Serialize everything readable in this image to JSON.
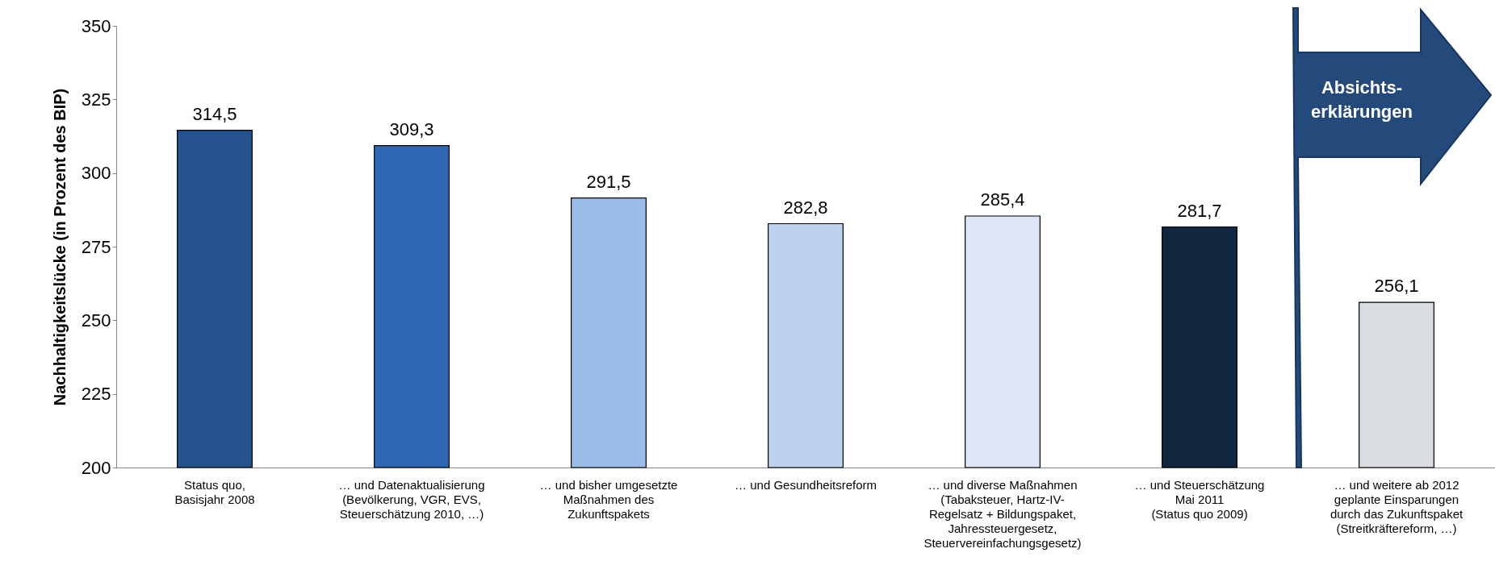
{
  "chart_data": {
    "type": "bar",
    "ylabel": "Nachhaltigkeitslücke (in Prozent des BIP)",
    "categories": [
      "Status quo,\nBasisjahr 2008",
      "… und Datenaktualisierung\n(Bevölkerung, VGR,  EVS,\nSteuerschätzung 2010, …)",
      "… und bisher umgesetzte\nMaßnahmen des\nZukunftspakets",
      "… und Gesundheitsreform",
      "… und diverse Maßnahmen\n(Tabaksteuer, Hartz-IV-\nRegelsatz + Bildungspaket,\nJahressteuergesetz,\nSteuervereinfachungsgesetz)",
      "… und Steuerschätzung\nMai 2011\n(Status quo 2009)",
      "… und weitere ab 2012\ngeplante Einsparungen\ndurch das  Zukunftspaket\n(Streitkräftereform, …)"
    ],
    "values": [
      314.5,
      309.3,
      291.5,
      282.8,
      285.4,
      281.7,
      256.1
    ],
    "colors": [
      "#25528c",
      "#2e68b3",
      "#9bbce6",
      "#bdd2ee",
      "#dce6f5",
      "#13263f",
      "#d9dde1"
    ],
    "ylim": [
      200,
      350
    ],
    "yticks": [
      200,
      225,
      250,
      275,
      300,
      325,
      350
    ],
    "value_labels": [
      "314,5",
      "309,3",
      "291,5",
      "282,8",
      "285,4",
      "281,7",
      "256,1"
    ],
    "grid": false,
    "annotations": [
      "Absichts-\nerklärungen"
    ]
  }
}
